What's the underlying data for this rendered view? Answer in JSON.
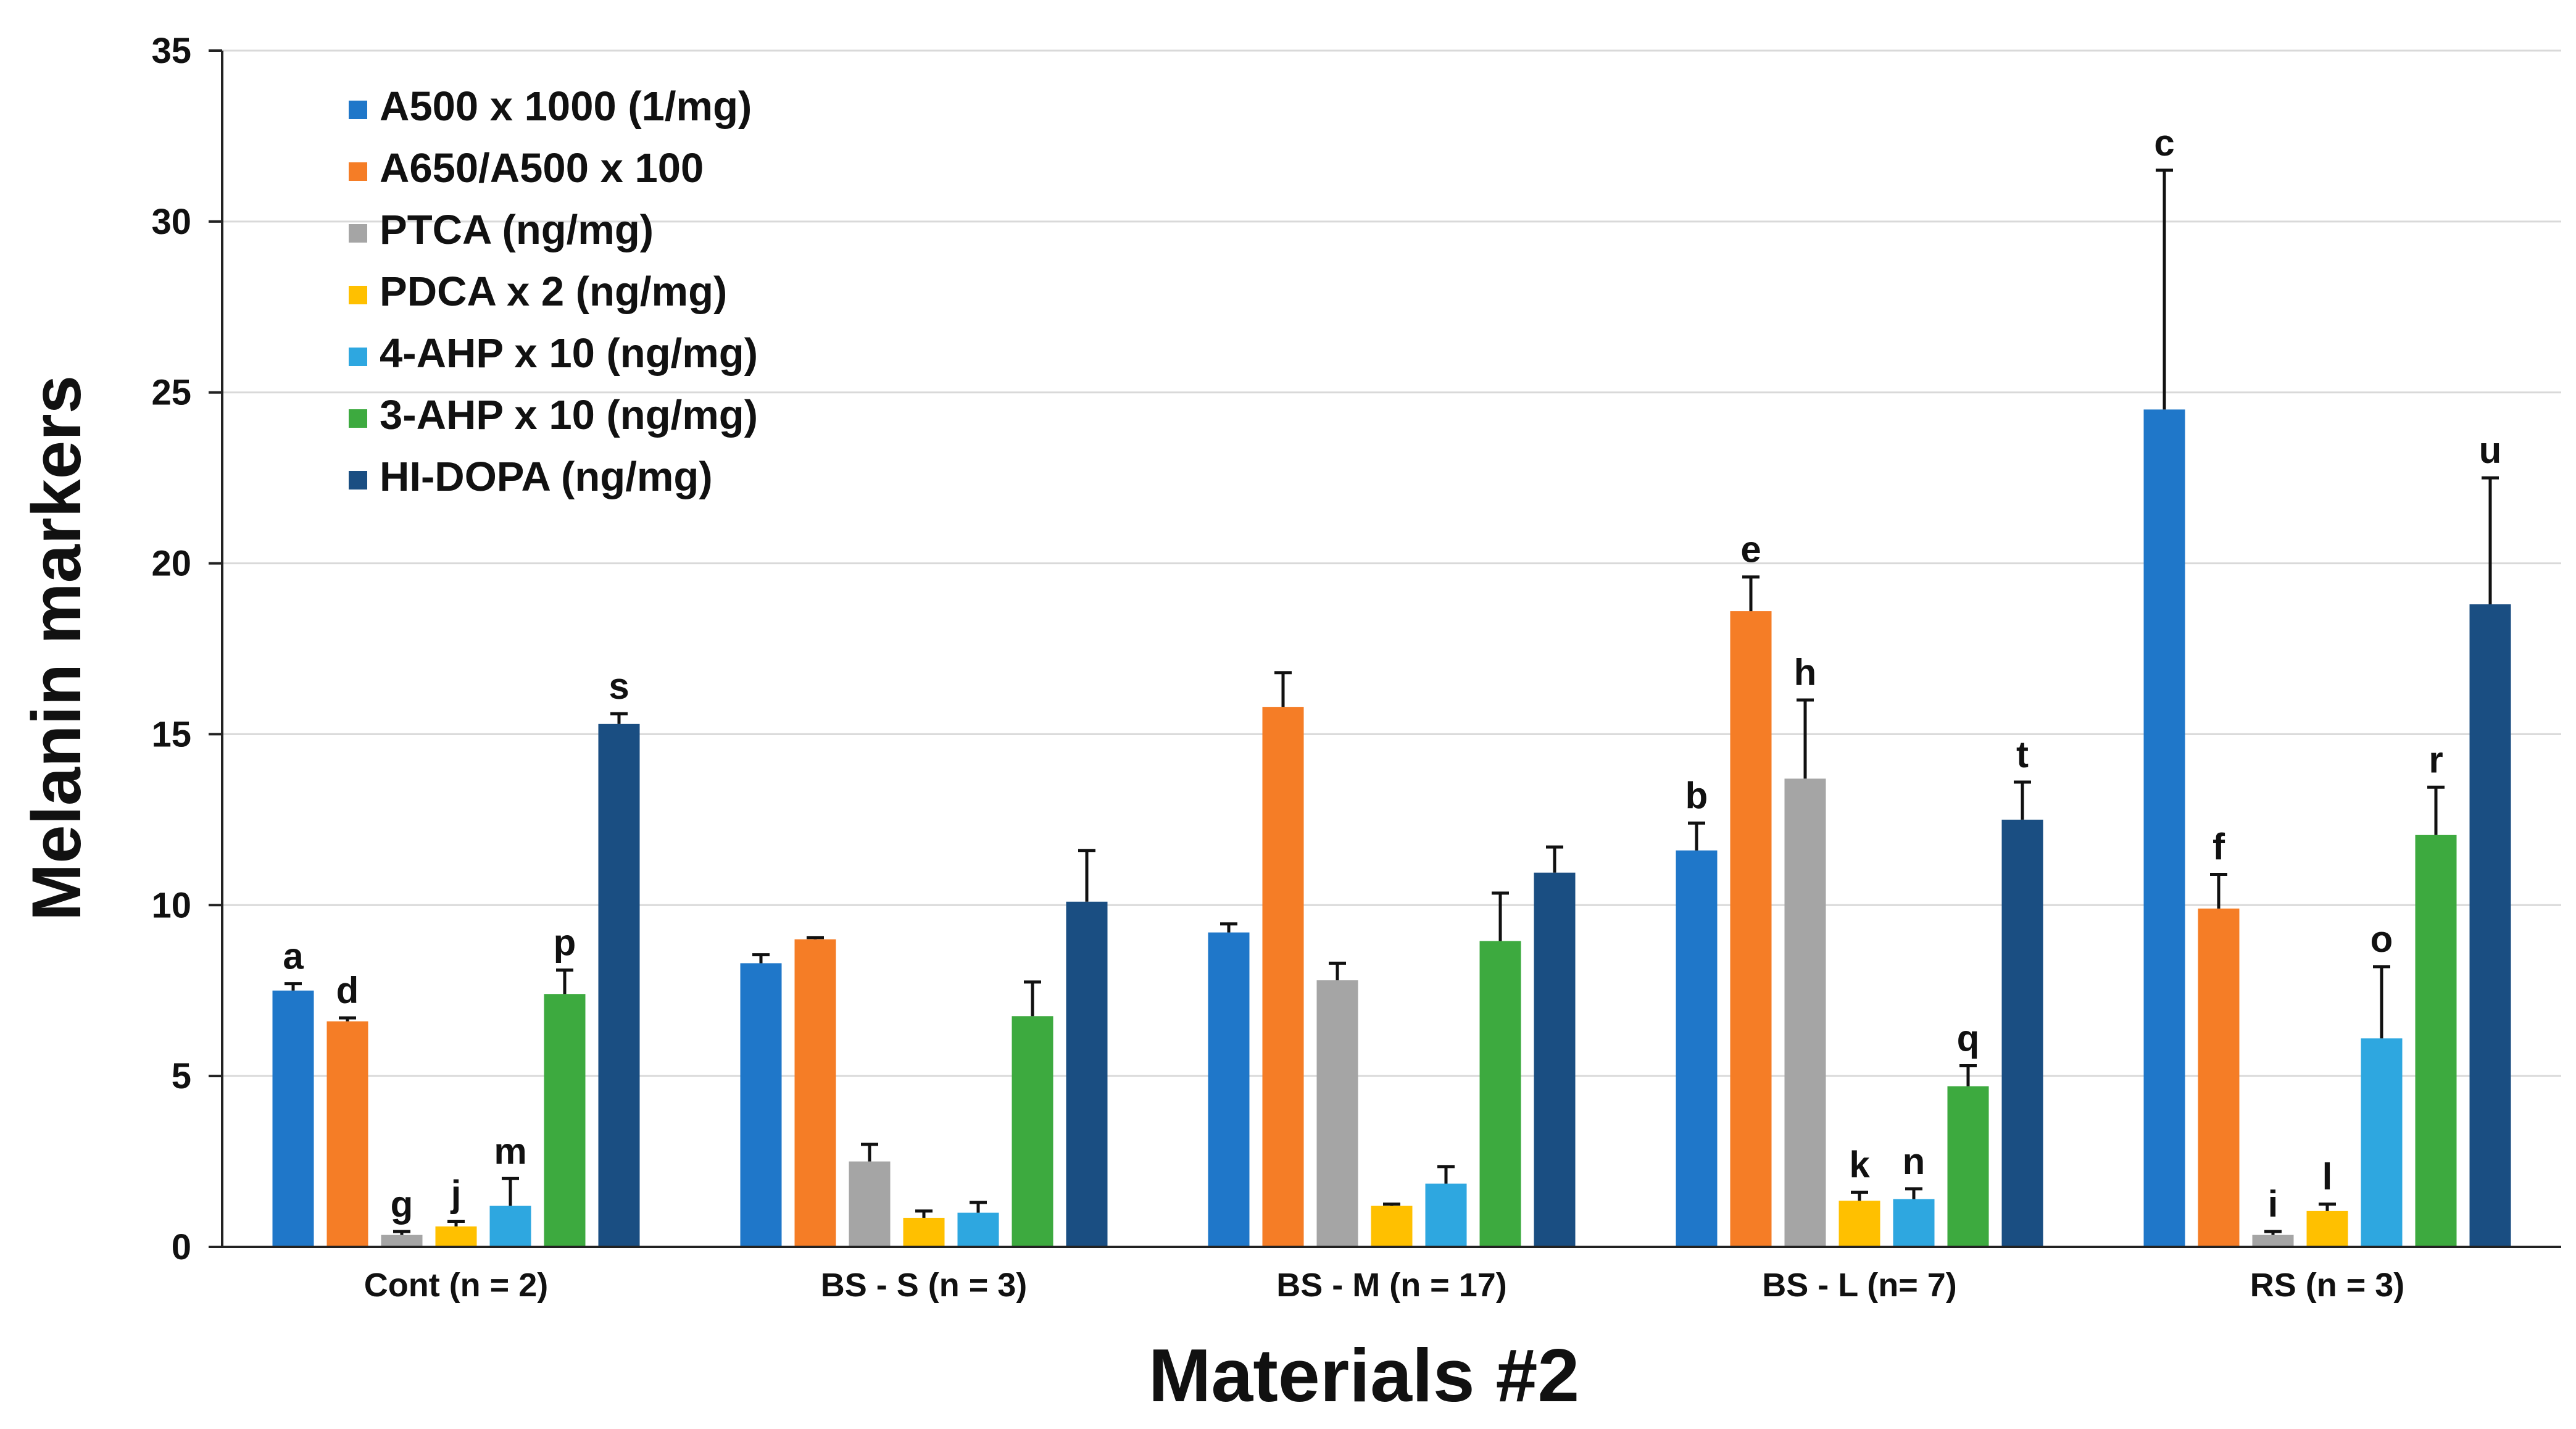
{
  "chart_data": {
    "type": "bar",
    "title": "",
    "xlabel": "Materials #2",
    "ylabel": "Melanin markers",
    "ylim": [
      0,
      35
    ],
    "yticks": [
      0,
      5,
      10,
      15,
      20,
      25,
      30,
      35
    ],
    "grid": true,
    "legend_position": "top-left",
    "categories": [
      "Cont (n = 2)",
      "BS - S (n = 3)",
      "BS - M (n = 17)",
      "BS - L (n= 7)",
      "RS (n = 3)"
    ],
    "series": [
      {
        "name": "A500 x 1000 (1/mg)",
        "color": "#1f77c9",
        "values": [
          7.5,
          8.3,
          9.2,
          11.6,
          24.5
        ],
        "errors": [
          0.2,
          0.25,
          0.25,
          0.8,
          7.0
        ],
        "letters": [
          "a",
          "",
          "",
          "b",
          "c"
        ]
      },
      {
        "name": "A650/A500 x 100",
        "color": "#f57d26",
        "values": [
          6.6,
          9.0,
          15.8,
          18.6,
          9.9
        ],
        "errors": [
          0.1,
          0.05,
          1.0,
          1.0,
          1.0
        ],
        "letters": [
          "d",
          "",
          "",
          "e",
          "f"
        ]
      },
      {
        "name": "PTCA  (ng/mg)",
        "color": "#a5a5a5",
        "values": [
          0.35,
          2.5,
          7.8,
          13.7,
          0.35
        ],
        "errors": [
          0.1,
          0.5,
          0.5,
          2.3,
          0.1
        ],
        "letters": [
          "g",
          "",
          "",
          "h",
          "i"
        ]
      },
      {
        "name": "PDCA x 2 (ng/mg)",
        "color": "#ffc000",
        "values": [
          0.6,
          0.85,
          1.2,
          1.35,
          1.05
        ],
        "errors": [
          0.15,
          0.2,
          0.05,
          0.25,
          0.2
        ],
        "letters": [
          "j",
          "",
          "",
          "k",
          "l"
        ]
      },
      {
        "name": "4-AHP x 10 (ng/mg)",
        "color": "#2ea7e0",
        "values": [
          1.2,
          1.0,
          1.85,
          1.4,
          6.1
        ],
        "errors": [
          0.8,
          0.3,
          0.5,
          0.3,
          2.1
        ],
        "letters": [
          "m",
          "",
          "",
          "n",
          "o"
        ]
      },
      {
        "name": "3-AHP x 10 (ng/mg)",
        "color": "#3daa3f",
        "values": [
          7.4,
          6.75,
          8.95,
          4.7,
          12.05
        ],
        "errors": [
          0.7,
          1.0,
          1.4,
          0.6,
          1.4
        ],
        "letters": [
          "p",
          "",
          "",
          "q",
          "r"
        ]
      },
      {
        "name": "HI-DOPA (ng/mg)",
        "color": "#1a4e82",
        "values": [
          15.3,
          10.1,
          10.95,
          12.5,
          18.8
        ],
        "errors": [
          0.3,
          1.5,
          0.75,
          1.1,
          3.7
        ],
        "letters": [
          "s",
          "",
          "",
          "t",
          "u"
        ]
      }
    ]
  }
}
